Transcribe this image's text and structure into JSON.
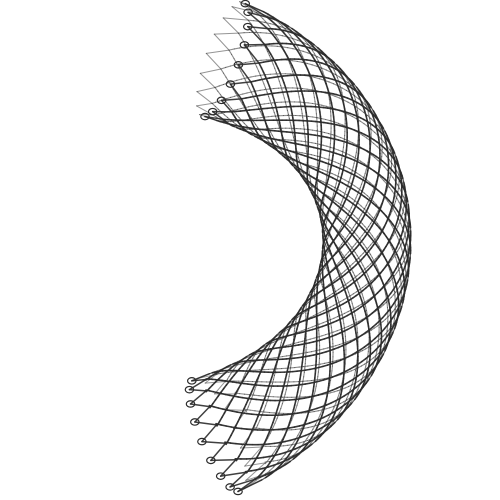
{
  "image": {
    "subject": "curved-mesh-stent-illustration",
    "background_color": "#ffffff",
    "stroke_color": "#2b2b2b",
    "open_cell_loops_at_ends": true
  }
}
